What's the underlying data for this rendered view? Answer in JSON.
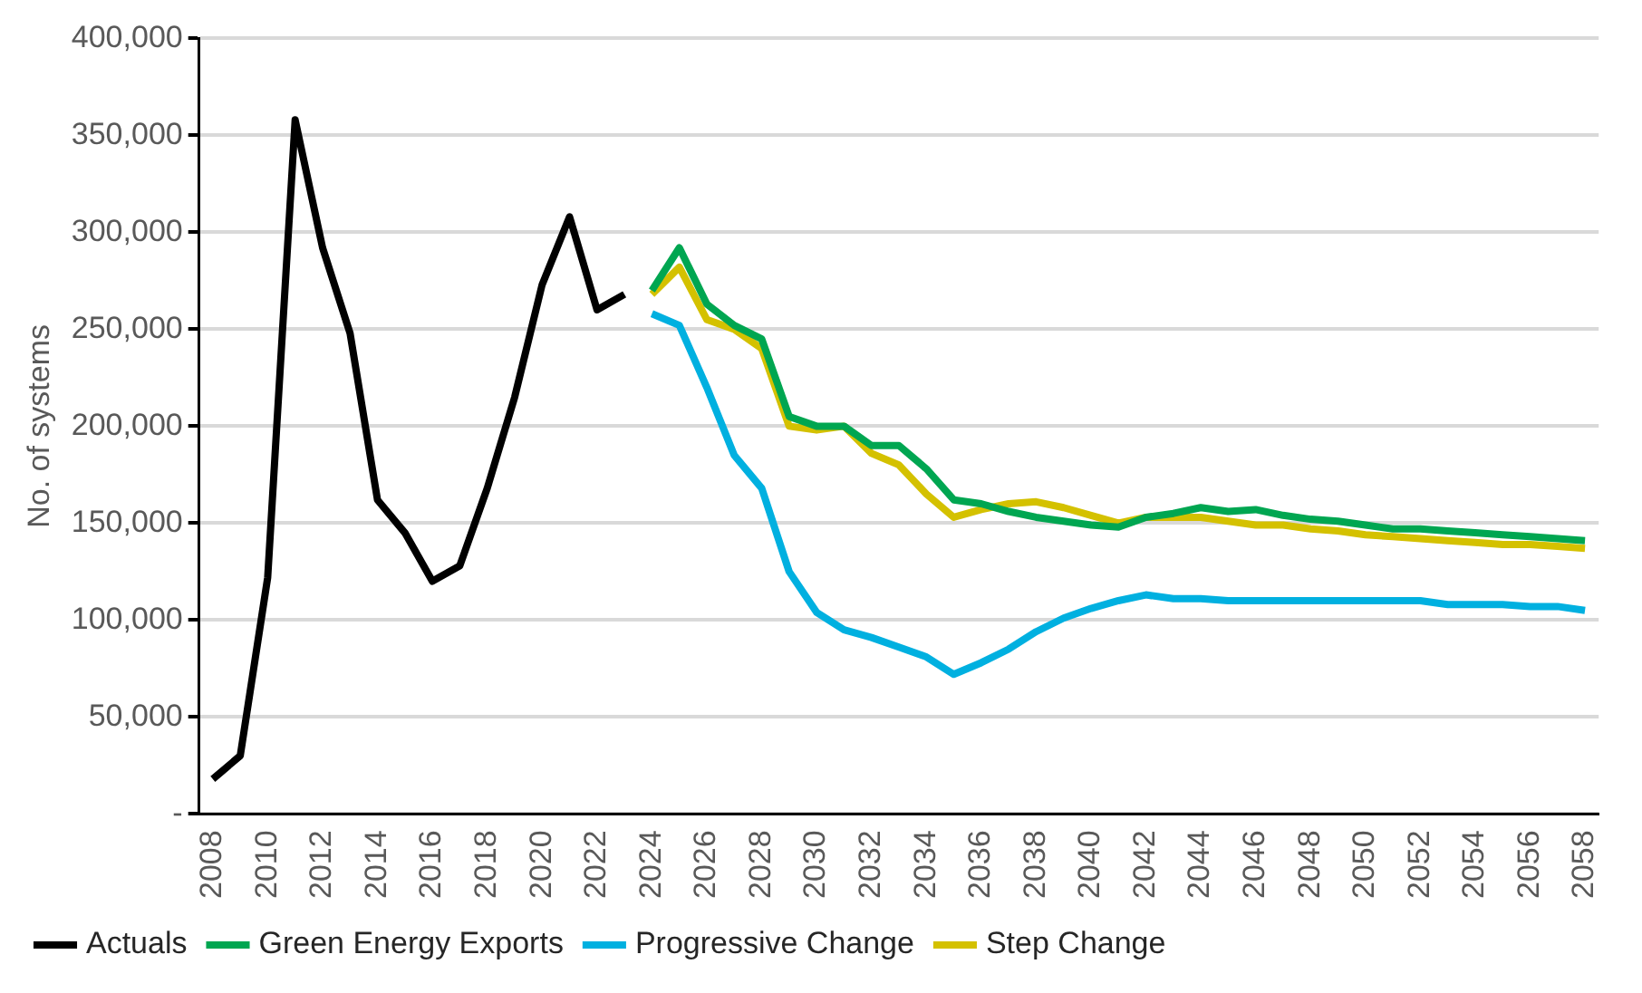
{
  "chart_data": {
    "type": "line",
    "ylabel": "No. of systems",
    "categories": [
      "2008",
      null,
      "2010",
      null,
      "2012",
      null,
      "2014",
      null,
      "2016",
      null,
      "2018",
      null,
      "2020",
      null,
      "2022",
      null,
      "2024",
      null,
      "2026",
      null,
      "2028",
      null,
      "2030",
      null,
      "2032",
      null,
      "2034",
      null,
      "2036",
      null,
      "2038",
      null,
      "2040",
      null,
      "2042",
      null,
      "2044",
      null,
      "2046",
      null,
      "2048",
      null,
      "2050",
      null,
      "2052",
      null,
      "2054",
      null,
      "2056",
      null,
      "2058"
    ],
    "series": [
      {
        "name": "Actuals",
        "color": "#000000",
        "values": [
          18000,
          30000,
          122000,
          358000,
          292000,
          248000,
          162000,
          145000,
          120000,
          128000,
          168000,
          215000,
          273000,
          308000,
          260000,
          268000,
          null,
          null,
          null,
          null,
          null,
          null,
          null,
          null,
          null,
          null,
          null,
          null,
          null,
          null,
          null,
          null,
          null,
          null,
          null,
          null,
          null,
          null,
          null,
          null,
          null,
          null,
          null,
          null,
          null,
          null,
          null,
          null,
          null,
          null,
          null
        ]
      },
      {
        "name": "Green Energy Exports",
        "color": "#00a651",
        "values": [
          null,
          null,
          null,
          null,
          null,
          null,
          null,
          null,
          null,
          null,
          null,
          null,
          null,
          null,
          null,
          null,
          270000,
          292000,
          263000,
          252000,
          245000,
          205000,
          200000,
          200000,
          190000,
          190000,
          178000,
          162000,
          160000,
          156000,
          153000,
          151000,
          149000,
          148000,
          153000,
          155000,
          158000,
          156000,
          157000,
          154000,
          152000,
          151000,
          149000,
          147000,
          147000,
          146000,
          145000,
          144000,
          143000,
          142000,
          141000
        ]
      },
      {
        "name": "Progressive Change",
        "color": "#00b0e0",
        "values": [
          null,
          null,
          null,
          null,
          null,
          null,
          null,
          null,
          null,
          null,
          null,
          null,
          null,
          null,
          null,
          null,
          258000,
          252000,
          220000,
          185000,
          168000,
          125000,
          104000,
          95000,
          91000,
          86000,
          81000,
          72000,
          78000,
          85000,
          94000,
          101000,
          106000,
          110000,
          113000,
          111000,
          111000,
          110000,
          110000,
          110000,
          110000,
          110000,
          110000,
          110000,
          110000,
          108000,
          108000,
          108000,
          107000,
          107000,
          105000
        ]
      },
      {
        "name": "Step Change",
        "color": "#d4c100",
        "values": [
          null,
          null,
          null,
          null,
          null,
          null,
          null,
          null,
          null,
          null,
          null,
          null,
          null,
          null,
          null,
          null,
          268000,
          282000,
          255000,
          250000,
          240000,
          200000,
          198000,
          200000,
          186000,
          180000,
          165000,
          153000,
          157000,
          160000,
          161000,
          158000,
          154000,
          150000,
          153000,
          153000,
          153000,
          151000,
          149000,
          149000,
          147000,
          146000,
          144000,
          143000,
          142000,
          141000,
          140000,
          139000,
          139000,
          138000,
          137000
        ]
      }
    ],
    "ylim": [
      0,
      400000
    ],
    "yticks": [
      {
        "value": 0,
        "label": "-"
      },
      {
        "value": 50000,
        "label": "50,000"
      },
      {
        "value": 100000,
        "label": "100,000"
      },
      {
        "value": 150000,
        "label": "150,000"
      },
      {
        "value": 200000,
        "label": "200,000"
      },
      {
        "value": 250000,
        "label": "250,000"
      },
      {
        "value": 300000,
        "label": "300,000"
      },
      {
        "value": 350000,
        "label": "350,000"
      },
      {
        "value": 400000,
        "label": "400,000"
      }
    ],
    "grid": "y",
    "legend": "bottom",
    "marker": "none",
    "line_style": "solid"
  }
}
